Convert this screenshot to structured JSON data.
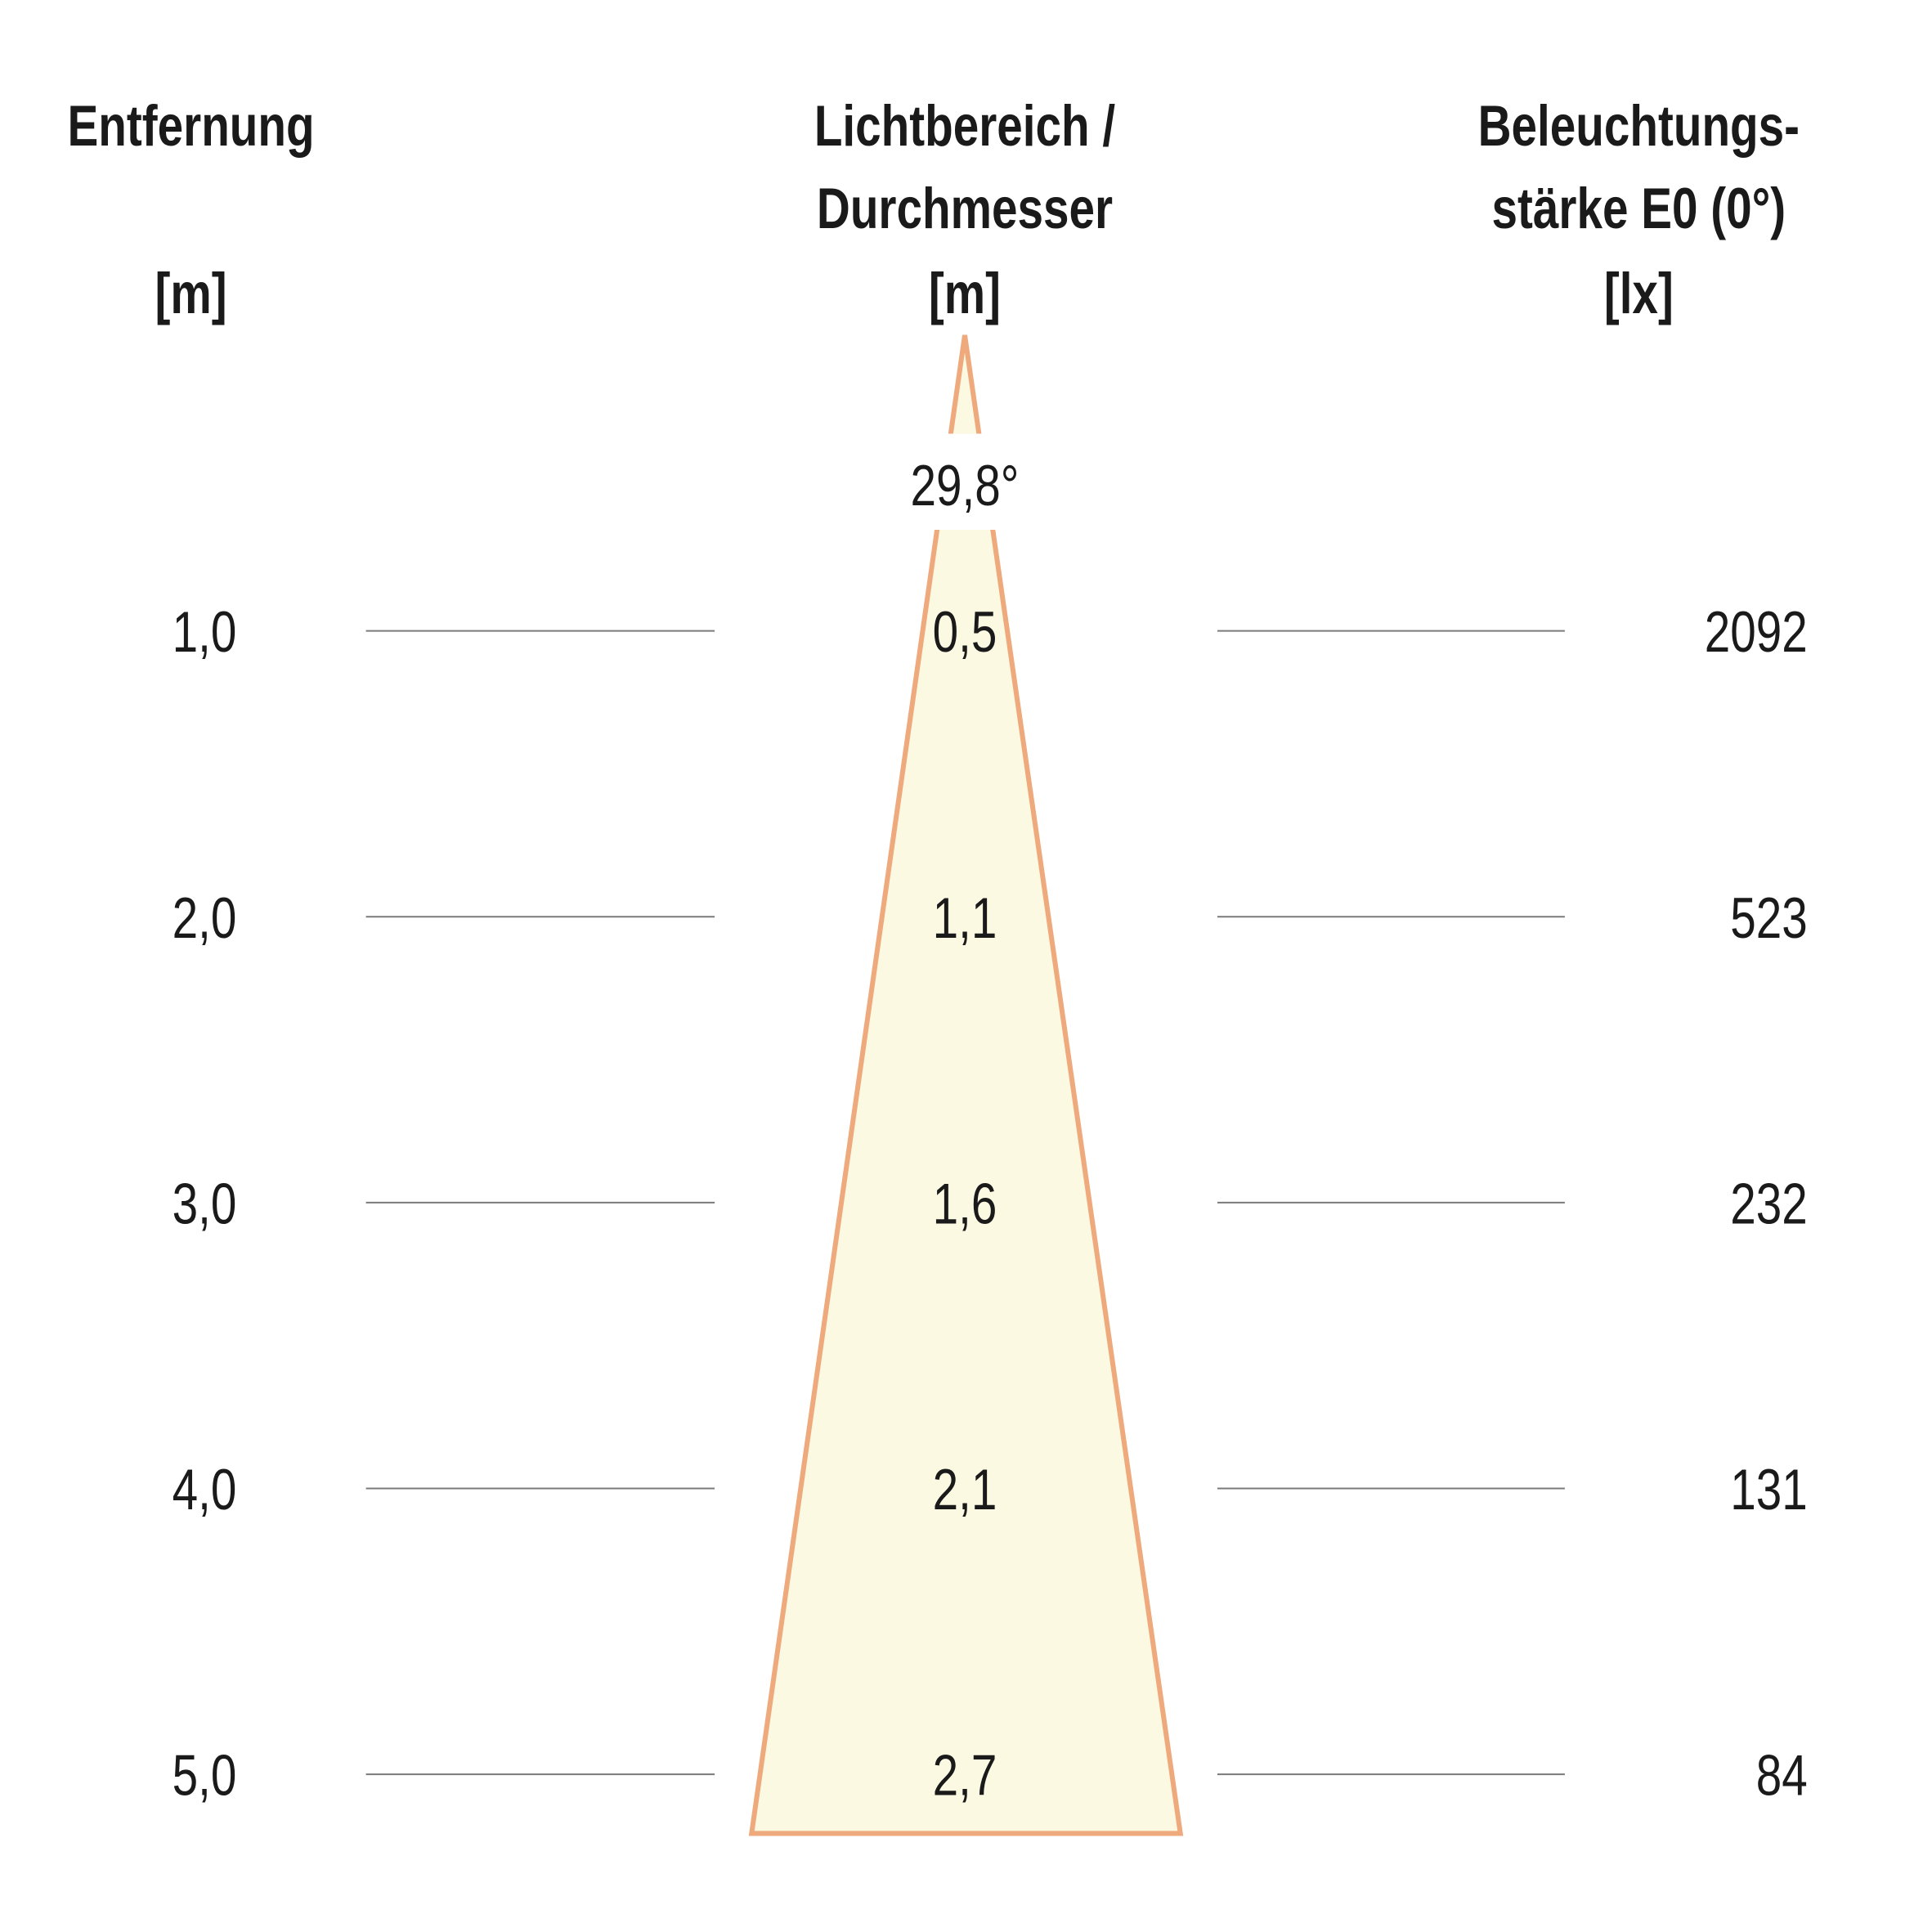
{
  "headers": {
    "distance": {
      "line1": "Entfernung",
      "unit": "[m]"
    },
    "diameter": {
      "line1": "Lichtbereich /",
      "line2": "Durchmesser",
      "unit": "[m]"
    },
    "illuminance": {
      "line1": "Beleuchtungs-",
      "line2": "stärke E0 (0°)",
      "unit": "[lx]"
    }
  },
  "beam_angle": "29,8°",
  "rows": [
    {
      "distance": "1,0",
      "diameter": "0,5",
      "illuminance": "2092"
    },
    {
      "distance": "2,0",
      "diameter": "1,1",
      "illuminance": "523"
    },
    {
      "distance": "3,0",
      "diameter": "1,6",
      "illuminance": "232"
    },
    {
      "distance": "4,0",
      "diameter": "2,1",
      "illuminance": "131"
    },
    {
      "distance": "5,0",
      "diameter": "2,7",
      "illuminance": "84"
    }
  ],
  "colors": {
    "cone_fill": "#FCF9E2",
    "cone_stroke": "#EEA97C",
    "rule": "#7a7a7a"
  }
}
